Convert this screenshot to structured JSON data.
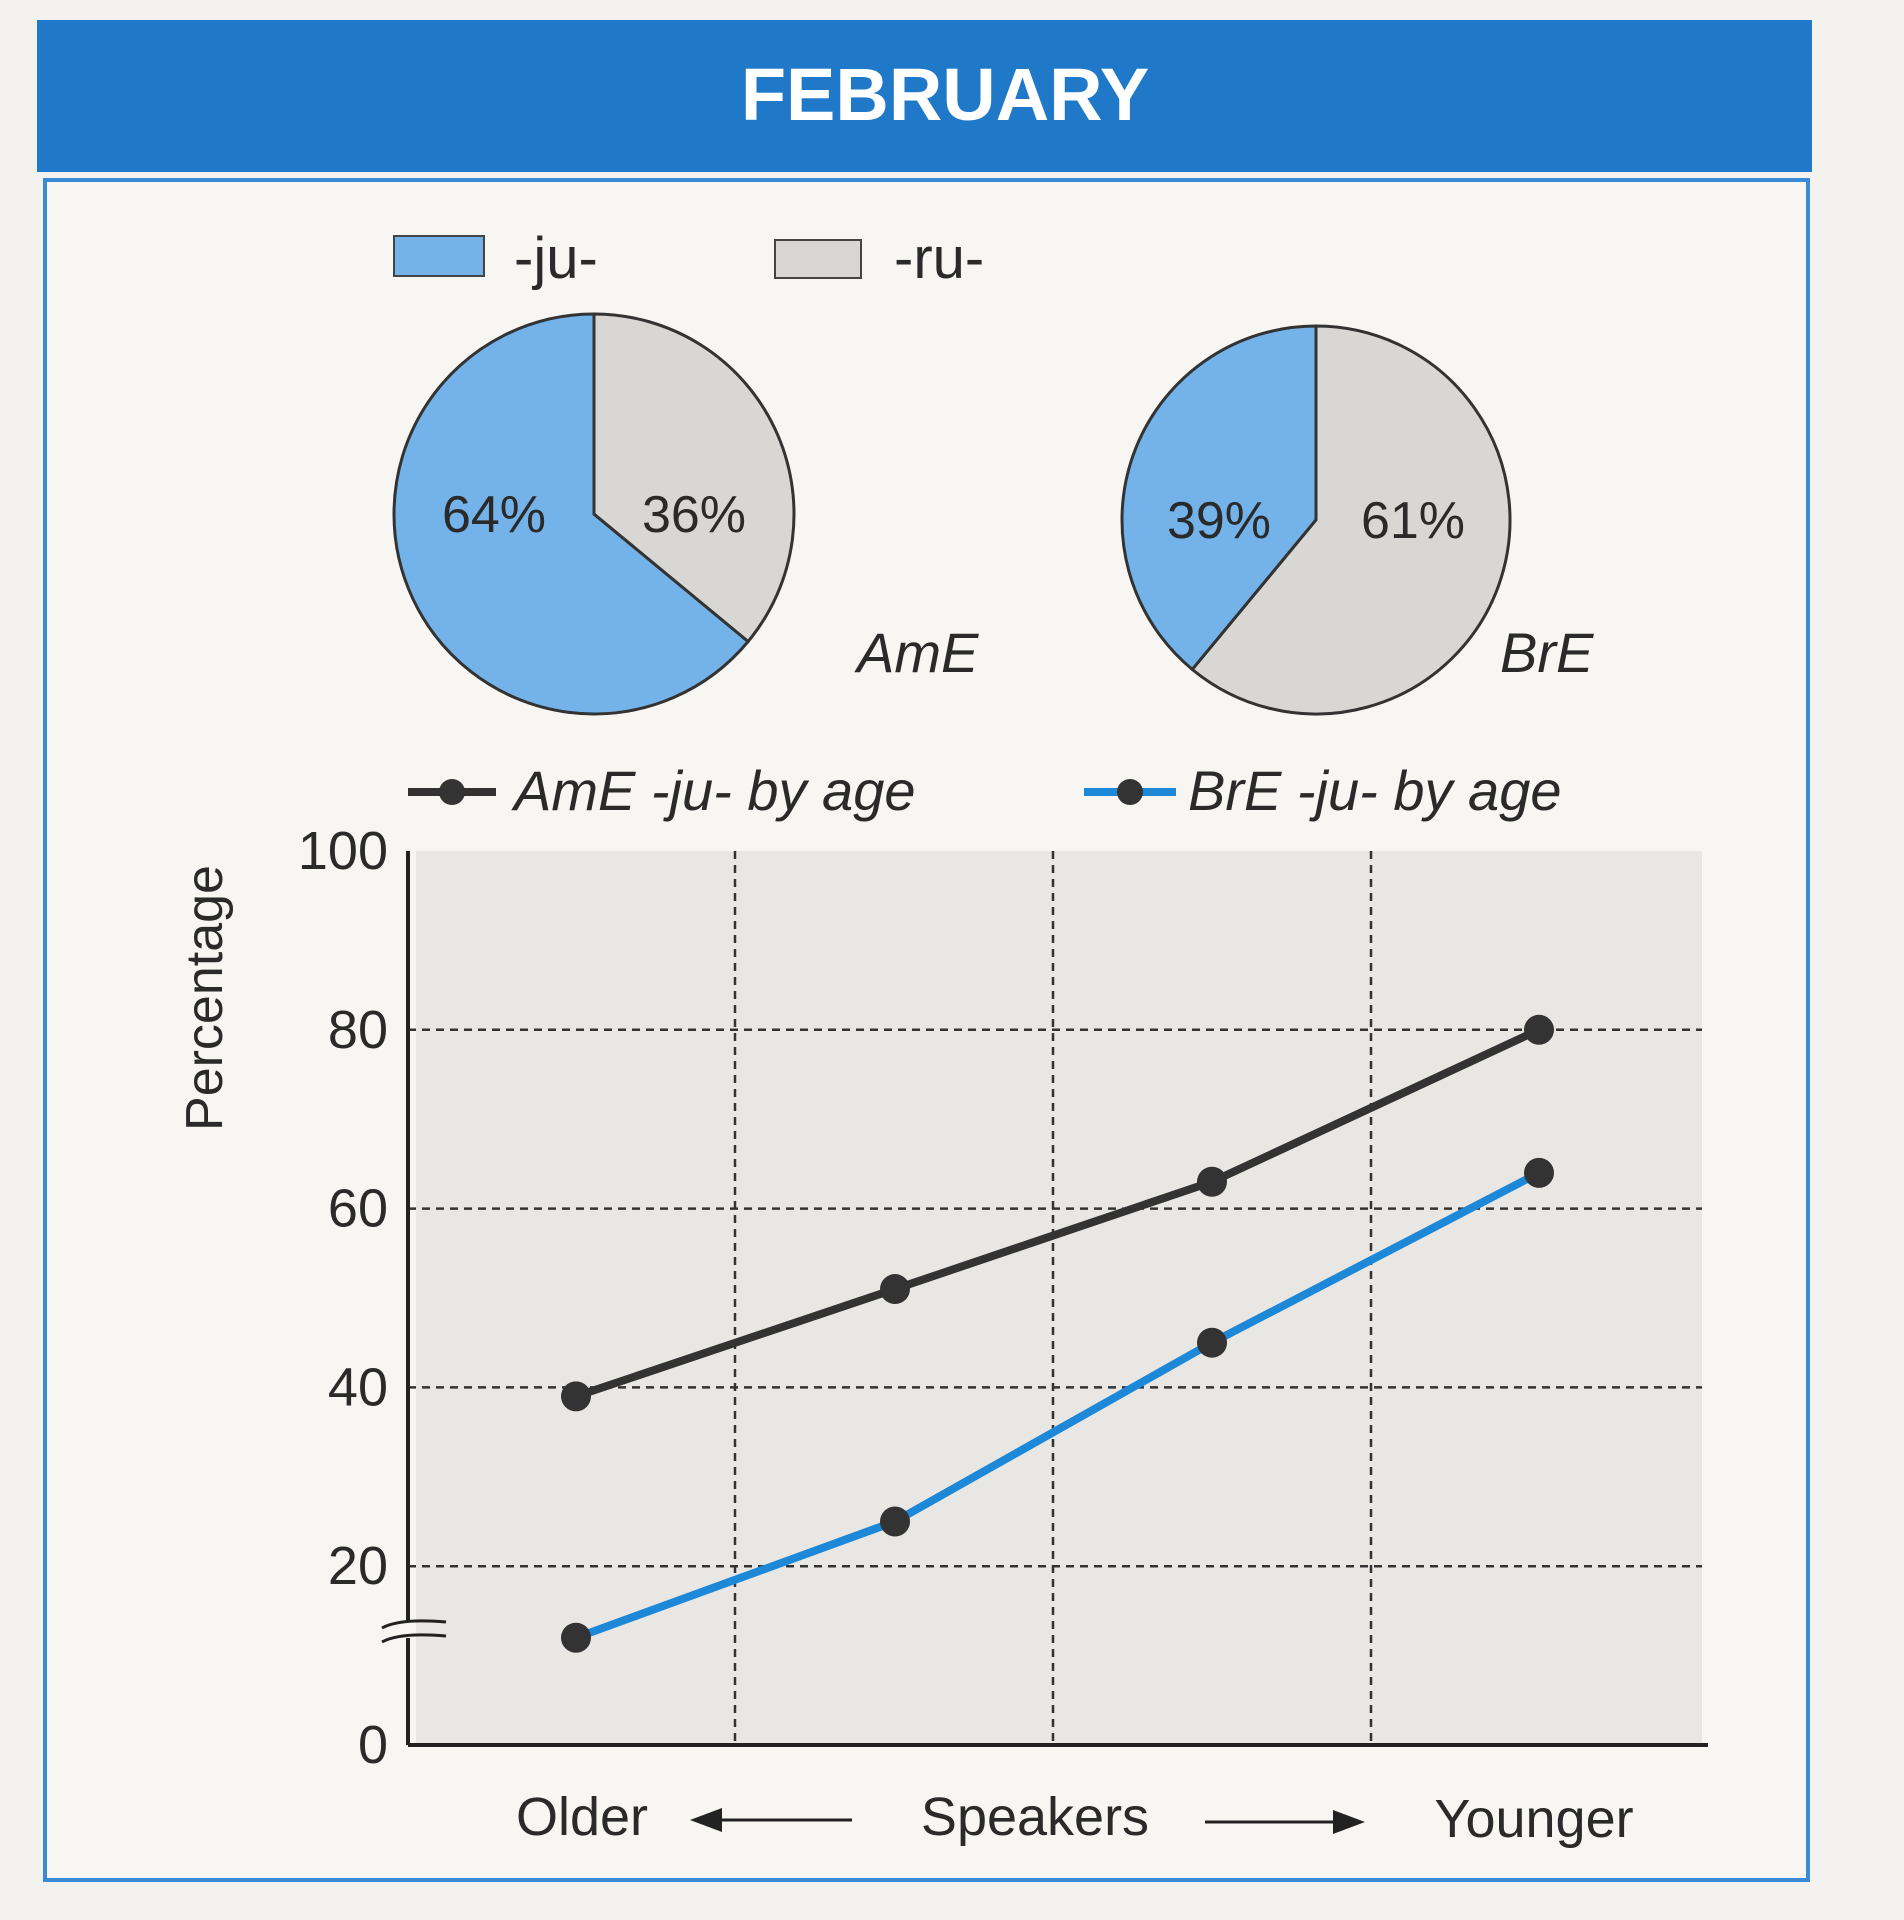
{
  "header": {
    "title": "FEBRUARY"
  },
  "colors": {
    "header": "#1f78c8",
    "ju": "#74b3ea",
    "ru": "#d9d7d3",
    "ame_line": "#333333",
    "bre_line": "#1e88d8",
    "border": "#3a8ad6"
  },
  "chart_data": [
    {
      "type": "pie",
      "legend": [
        "-ju-",
        "-ru-"
      ],
      "charts": [
        {
          "name": "AmE",
          "slices": [
            {
              "label": "-ju-",
              "value": 64,
              "text": "64%"
            },
            {
              "label": "-ru-",
              "value": 36,
              "text": "36%"
            }
          ]
        },
        {
          "name": "BrE",
          "slices": [
            {
              "label": "-ju-",
              "value": 39,
              "text": "39%"
            },
            {
              "label": "-ru-",
              "value": 61,
              "text": "61%"
            }
          ]
        }
      ]
    },
    {
      "type": "line",
      "ylabel": "Percentage",
      "ylim": [
        0,
        100
      ],
      "yticks": [
        "0",
        "20",
        "40",
        "60",
        "80",
        "100"
      ],
      "axis_break": true,
      "grid": true,
      "xlabel": {
        "left": "Older",
        "center": "Speakers",
        "right": "Younger"
      },
      "x": [
        1,
        2,
        3,
        4
      ],
      "series": [
        {
          "name": "AmE -ju- by age",
          "values": [
            39,
            51,
            63,
            80
          ]
        },
        {
          "name": "BrE -ju- by age",
          "values": [
            12,
            25,
            45,
            64
          ]
        }
      ]
    }
  ]
}
